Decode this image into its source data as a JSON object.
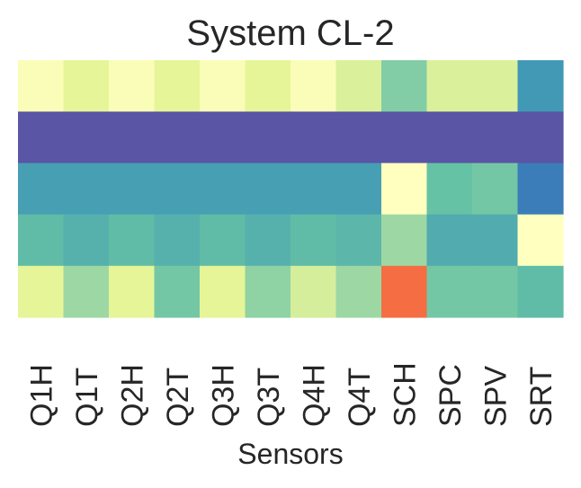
{
  "chart_data": {
    "type": "heatmap",
    "title": "System CL-2",
    "xlabel": "Sensors",
    "ylabel": "",
    "categories": [
      "Q1H",
      "Q1T",
      "Q2H",
      "Q2T",
      "Q3H",
      "Q3T",
      "Q4H",
      "Q4T",
      "SCH",
      "SPC",
      "SPV",
      "SRT"
    ],
    "rows": 5,
    "colormap": "Spectral",
    "vmin": 0.0,
    "vmax": 1.0,
    "colorbar": false,
    "y_ticks": false,
    "grid": false,
    "values": [
      [
        0.52,
        0.6,
        0.52,
        0.6,
        0.52,
        0.6,
        0.52,
        0.62,
        0.76,
        0.62,
        0.62,
        0.87
      ],
      [
        0.99,
        0.99,
        0.99,
        0.99,
        0.99,
        0.99,
        0.99,
        0.99,
        0.99,
        0.99,
        0.99,
        0.99
      ],
      [
        0.86,
        0.86,
        0.86,
        0.86,
        0.86,
        0.86,
        0.86,
        0.86,
        0.5,
        0.8,
        0.78,
        0.92
      ],
      [
        0.81,
        0.83,
        0.81,
        0.83,
        0.81,
        0.83,
        0.81,
        0.82,
        0.72,
        0.84,
        0.84,
        0.5
      ],
      [
        0.6,
        0.72,
        0.6,
        0.78,
        0.6,
        0.74,
        0.63,
        0.72,
        0.2,
        0.78,
        0.78,
        0.81
      ]
    ]
  }
}
